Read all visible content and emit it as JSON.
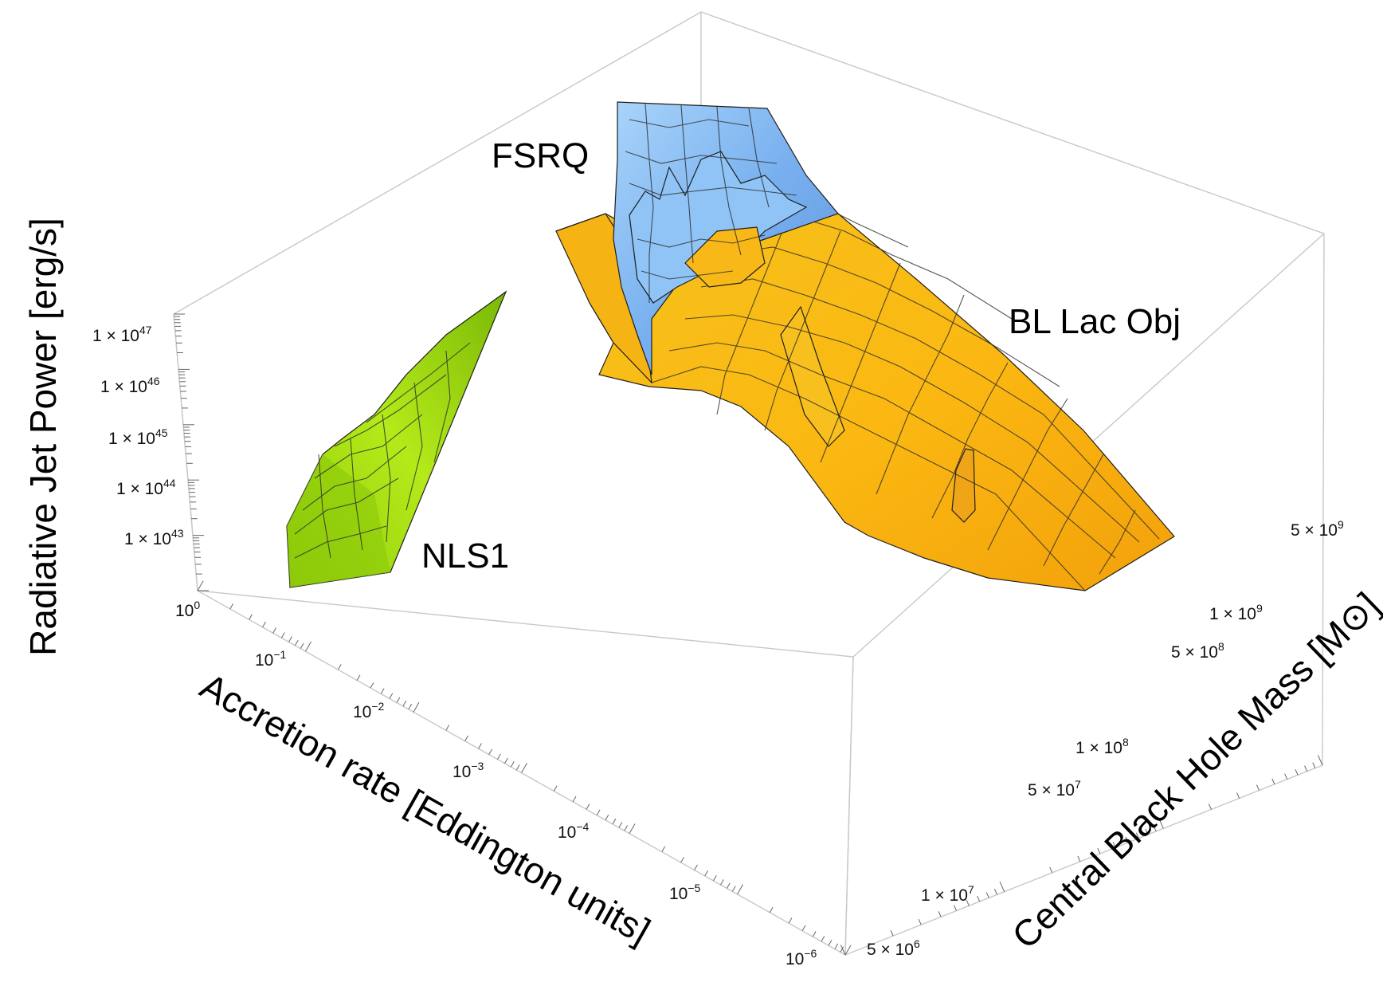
{
  "chart_data": {
    "type": "surface3d",
    "title": "",
    "colors": {
      "NLS1": "#a6e010",
      "FSRQ": "#7fb6f2",
      "BL Lac Obj": "#f8b610",
      "box": "#c8c8c8"
    },
    "axes": {
      "x": {
        "label": "Accretion rate [Eddington units]",
        "scale": "log",
        "range": [
          1e-06,
          1
        ],
        "ticks": [
          {
            "base": "10",
            "exp": "0"
          },
          {
            "base": "10",
            "exp": "−1"
          },
          {
            "base": "10",
            "exp": "−2"
          },
          {
            "base": "10",
            "exp": "−3"
          },
          {
            "base": "10",
            "exp": "−4"
          },
          {
            "base": "10",
            "exp": "−5"
          },
          {
            "base": "10",
            "exp": "−6"
          }
        ]
      },
      "y": {
        "label": "Central Black Hole Mass [M",
        "label_symbol": "⊙",
        "label_end": "]",
        "scale": "log",
        "range": [
          4000000.0,
          8000000000.0
        ],
        "ticks": [
          {
            "base": "5 × 10",
            "exp": "6"
          },
          {
            "base": "1 × 10",
            "exp": "7"
          },
          {
            "base": "5 × 10",
            "exp": "7"
          },
          {
            "base": "1 × 10",
            "exp": "8"
          },
          {
            "base": "5 × 10",
            "exp": "8"
          },
          {
            "base": "1 × 10",
            "exp": "9"
          },
          {
            "base": "5 × 10",
            "exp": "9"
          }
        ]
      },
      "z": {
        "label": "Radiative Jet Power [erg/s]",
        "scale": "log",
        "range": [
          1e+42,
          3e+47
        ],
        "ticks": [
          {
            "base": "1 × 10",
            "exp": "43"
          },
          {
            "base": "1 × 10",
            "exp": "44"
          },
          {
            "base": "1 × 10",
            "exp": "45"
          },
          {
            "base": "1 × 10",
            "exp": "46"
          },
          {
            "base": "1 × 10",
            "exp": "47"
          }
        ]
      }
    },
    "series": [
      {
        "name": "NLS1",
        "label": "NLS1",
        "accretion_range": [
          0.01,
          1
        ],
        "mass_range": [
          1000000.0,
          100000000.0
        ],
        "jet_power_range": [
          1e+43,
          1e+47
        ]
      },
      {
        "name": "FSRQ",
        "label": "FSRQ",
        "accretion_range": [
          0.001,
          1
        ],
        "mass_range": [
          100000000.0,
          5000000000.0
        ],
        "jet_power_range": [
          1e+45,
          1e+47
        ]
      },
      {
        "name": "BL Lac Obj",
        "label": "BL Lac Obj",
        "accretion_range": [
          1e-05,
          0.1
        ],
        "mass_range": [
          100000000.0,
          5000000000.0
        ],
        "jet_power_range": [
          1e+43,
          1e+46
        ]
      }
    ]
  }
}
